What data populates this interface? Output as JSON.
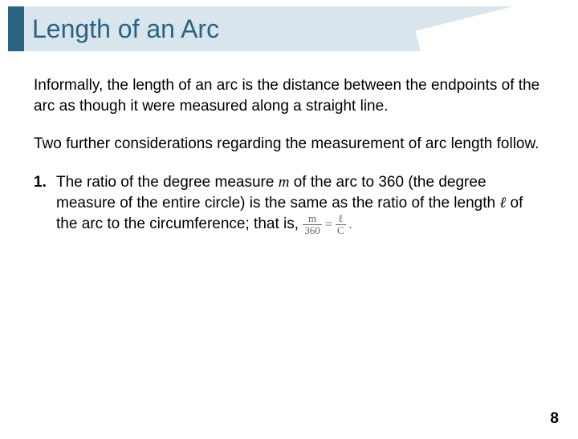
{
  "slide": {
    "title": "Length of an Arc",
    "title_color": "#2a6481",
    "title_bg": "#d8e5ec",
    "accent_color": "#2a6481",
    "title_fontsize": 32,
    "body_fontsize": 19,
    "body_color": "#000000",
    "background": "#ffffff",
    "page_number": "8",
    "para1": "Informally, the length of an arc is the distance between the endpoints of the arc as though it were measured along a straight line.",
    "para2": "Two further considerations regarding the measurement of arc length follow.",
    "item1_number": "1.",
    "item1_pre": "The ratio of the degree measure ",
    "item1_m": "m",
    "item1_mid1": " of the arc to 360 (the degree measure of the entire circle) is the same as the ratio of the length ",
    "item1_ell": "ℓ",
    "item1_mid2": " of the arc to the circumference; that is, ",
    "formula": {
      "frac1_num": "m",
      "frac1_den": "360",
      "equals": "=",
      "frac2_num": "ℓ",
      "frac2_den": "C",
      "period": "."
    }
  }
}
